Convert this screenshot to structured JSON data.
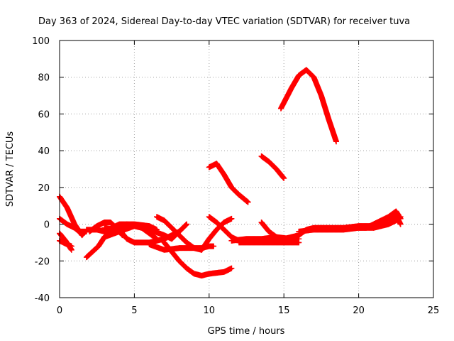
{
  "chart_data": {
    "type": "scatter",
    "title": "Day 363 of 2024, Sidereal Day-to-day VTEC variation (SDTVAR) for receiver tuva",
    "xlabel": "GPS time / hours",
    "ylabel": "SDTVAR / TECUs",
    "xlim": [
      0,
      25
    ],
    "ylim": [
      -40,
      100
    ],
    "xticks": [
      0,
      5,
      10,
      15,
      20,
      25
    ],
    "yticks": [
      -40,
      -20,
      0,
      20,
      40,
      60,
      80,
      100
    ],
    "xtick_labels": [
      "0",
      "5",
      "10",
      "15",
      "20",
      "25"
    ],
    "ytick_labels": [
      "-40",
      "-20",
      "0",
      "20",
      "40",
      "60",
      "80",
      "100"
    ],
    "grid": true,
    "legend": "none",
    "marker": "plus",
    "color": "#ff0000",
    "series": [
      {
        "x": [
          0.0,
          0.5,
          1.0,
          1.5,
          1.6
        ],
        "y": [
          15,
          9,
          0,
          -6,
          -5
        ]
      },
      {
        "x": [
          0.0,
          0.4,
          0.8
        ],
        "y": [
          -5,
          -9,
          -14
        ]
      },
      {
        "x": [
          0.0,
          0.5,
          1.0,
          1.3,
          1.5,
          1.8
        ],
        "y": [
          3,
          0,
          -2,
          -4,
          -4,
          -4
        ]
      },
      {
        "x": [
          0.0,
          0.5,
          0.8
        ],
        "y": [
          -9,
          -11,
          -12
        ]
      },
      {
        "x": [
          1.8,
          2.5,
          3.0,
          3.5,
          4.0,
          5.0,
          6.0,
          6.5
        ],
        "y": [
          -3,
          -3,
          -4,
          -2,
          0,
          0,
          -1,
          -3
        ]
      },
      {
        "x": [
          1.8,
          2.2,
          2.6,
          3.0,
          3.5,
          4.0,
          4.5
        ],
        "y": [
          -18,
          -15,
          -12,
          -7,
          -3,
          -1,
          0
        ]
      },
      {
        "x": [
          2.0,
          2.5,
          3.0,
          3.4,
          3.8,
          4.2
        ],
        "y": [
          -4,
          -1,
          1,
          1,
          -2,
          -6
        ]
      },
      {
        "x": [
          3.0,
          4.0,
          4.5,
          5.0,
          6.0,
          7.0,
          8.0
        ],
        "y": [
          -2,
          -3,
          -8,
          -10,
          -10,
          -8,
          -4
        ]
      },
      {
        "x": [
          3.0,
          4.0,
          5.0,
          6.0,
          7.0,
          7.5,
          8.0,
          8.5
        ],
        "y": [
          -7,
          -4,
          -1,
          -3,
          -6,
          -8,
          -4,
          0
        ]
      },
      {
        "x": [
          4.0,
          5.0,
          5.5,
          6.0,
          6.5
        ],
        "y": [
          -1,
          -1,
          -2,
          -5,
          -8
        ]
      },
      {
        "x": [
          6.0,
          7.0,
          8.0,
          9.0,
          9.5,
          10.0,
          10.3
        ],
        "y": [
          -11,
          -14,
          -13,
          -13,
          -13,
          -12,
          -12
        ]
      },
      {
        "x": [
          6.5,
          7.0,
          7.5,
          8.0,
          8.5,
          9.0,
          9.5
        ],
        "y": [
          4,
          2,
          -2,
          -6,
          -10,
          -13,
          -14
        ]
      },
      {
        "x": [
          7.0,
          7.5,
          8.0,
          8.5,
          9.0,
          9.5,
          10.0,
          11.0,
          11.5
        ],
        "y": [
          -10,
          -15,
          -20,
          -24,
          -27,
          -28,
          -27,
          -26,
          -24
        ]
      },
      {
        "x": [
          9.5,
          10.0,
          10.5,
          11.0,
          11.5
        ],
        "y": [
          -14,
          -8,
          -3,
          1,
          3
        ]
      },
      {
        "x": [
          10.0,
          10.5,
          11.0,
          11.5,
          12.0,
          12.5,
          13.0,
          14.0,
          15.0
        ],
        "y": [
          4,
          1,
          -3,
          -7,
          -9,
          -9,
          -9,
          -8,
          -9
        ]
      },
      {
        "x": [
          11.5,
          12.5,
          13.5,
          14.5,
          15.5,
          16.0
        ],
        "y": [
          -9,
          -8,
          -8,
          -7,
          -8,
          -8
        ]
      },
      {
        "x": [
          12.0,
          13.0,
          14.0,
          15.0,
          16.0
        ],
        "y": [
          -10,
          -10,
          -10,
          -10,
          -10
        ]
      },
      {
        "x": [
          13.5,
          14.0,
          14.5,
          15.0
        ],
        "y": [
          1,
          -4,
          -7,
          -8
        ]
      },
      {
        "x": [
          10.0,
          10.5,
          11.0,
          11.5,
          12.0,
          12.6
        ],
        "y": [
          31,
          33,
          27,
          20,
          16,
          12
        ]
      },
      {
        "x": [
          13.5,
          14.0,
          14.5,
          15.0
        ],
        "y": [
          37,
          34,
          30,
          25
        ]
      },
      {
        "x": [
          14.8,
          15.5,
          16.0,
          16.5,
          17.0,
          17.5,
          18.0,
          18.5
        ],
        "y": [
          63,
          74,
          81,
          84,
          80,
          70,
          57,
          45
        ]
      },
      {
        "x": [
          15.0,
          16.0,
          16.5,
          17.0,
          18.0,
          19.0,
          20.0,
          21.0,
          21.5
        ],
        "y": [
          -8,
          -6,
          -3,
          -2,
          -2,
          -2,
          -1,
          -1,
          -1
        ]
      },
      {
        "x": [
          16.0,
          17.0,
          18.0,
          19.0,
          20.0,
          20.5,
          21.0
        ],
        "y": [
          -4,
          -3,
          -3,
          -3,
          -2,
          -2,
          -2
        ]
      },
      {
        "x": [
          20.0,
          20.5,
          21.0,
          21.5,
          22.0,
          22.5,
          22.8
        ],
        "y": [
          -2,
          -2,
          0,
          2,
          4,
          7,
          3
        ]
      },
      {
        "x": [
          21.0,
          21.5,
          22.0,
          22.5,
          22.8
        ],
        "y": [
          -1,
          1,
          3,
          5,
          0
        ]
      },
      {
        "x": [
          21.0,
          21.5,
          22.0,
          22.5,
          22.8
        ],
        "y": [
          -2,
          -1,
          0,
          2,
          4
        ]
      }
    ]
  }
}
